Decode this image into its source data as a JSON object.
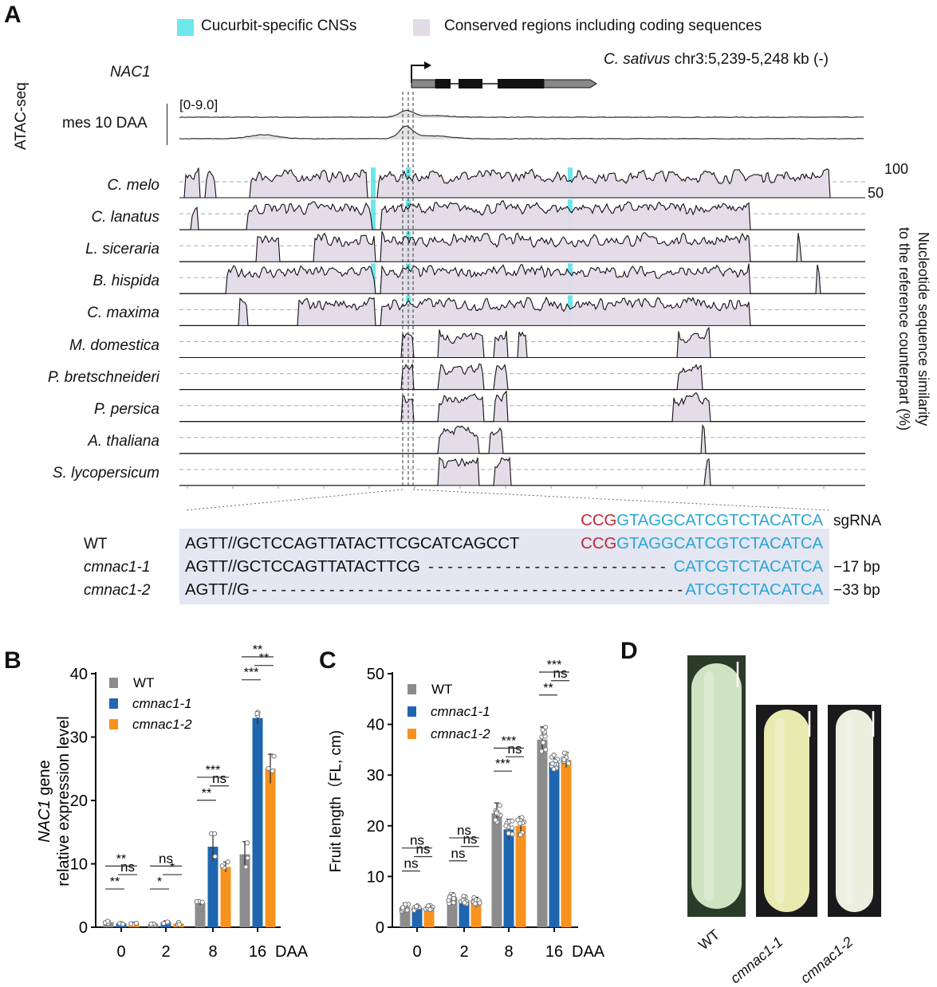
{
  "panelA": {
    "letter": "A",
    "legend": [
      {
        "label": "Cucurbit-specific CNSs",
        "color": "#6ee6ea"
      },
      {
        "label": "Conserved regions including coding sequences",
        "color": "#e3dbe8"
      }
    ],
    "gene_name": "NAC1",
    "coordinates_species": "C. sativus",
    "coordinates": "chr3:5,239-5,248 kb (-)",
    "atac_label": "ATAC-seq",
    "atac_sample": "mes 10 DAA",
    "atac_range": "[0-9.0]",
    "species": [
      "C. melo",
      "C. lanatus",
      "L. siceraria",
      "B. hispida",
      "C. maxima",
      "M. domestica",
      "P. bretschneideri",
      "P. persica",
      "A. thaliana",
      "S. lycopersicum"
    ],
    "similarity_ticks": [
      "100",
      "50"
    ],
    "similarity_axis_label_line1": "Nucleotide sequence similarity",
    "similarity_axis_label_line2": "to the reference counterpart (%)",
    "sequence": {
      "sgRNA": {
        "label": "sgRNA",
        "pam": "CCG",
        "target": "GTAGGCATCGTCTACATCA"
      },
      "rows": [
        {
          "label": "WT",
          "left": "AGTT//GCTCCAGTTATACTTCGCATCAGCCT",
          "gap": "",
          "pam": "CCG",
          "right": "GTAGGCATCGTCTACATCA",
          "deletion": ""
        },
        {
          "label": "cmnac1-1",
          "left": "AGTT//GCTCCAGTTATACTTCG",
          "gap": "- - - - - - - - - - - - - - - - - - - - - - - - -",
          "pam": "",
          "right": "CATCGTCTACATCA",
          "deletion": "−17 bp"
        },
        {
          "label": "cmnac1-2",
          "left": "AGTT//G",
          "gap": "- - - - - - - - - - - - - - - - - - - - - - - - - - - - - - - - - - - - - - - - - - - - -",
          "pam": "",
          "right": "ATCGTCTACATCA",
          "deletion": "−33 bp"
        }
      ]
    }
  },
  "chart_data": [
    {
      "panel": "B",
      "type": "bar",
      "categories": [
        "0",
        "2",
        "8",
        "16"
      ],
      "x_unit": "DAA",
      "ylabel_italic": "NAC1",
      "ylabel_rest": " gene",
      "ylabel_line2": "relative expression level",
      "ylim": [
        0,
        40
      ],
      "yticks": [
        "0",
        "10",
        "20",
        "30",
        "40"
      ],
      "legend_position": "top-left",
      "series": [
        {
          "name": "WT",
          "color": "#8c8c8c",
          "values": [
            0.8,
            0.5,
            3.8,
            11.5
          ],
          "errors": [
            0.2,
            0.2,
            0.3,
            2.0
          ]
        },
        {
          "name": "cmnac1-1",
          "color": "#1f66b0",
          "values": [
            0.6,
            0.8,
            12.7,
            33.0
          ],
          "errors": [
            0.2,
            0.2,
            2.3,
            1.0
          ]
        },
        {
          "name": "cmnac1-2",
          "color": "#f7921e",
          "values": [
            0.6,
            0.6,
            9.5,
            25.0
          ],
          "errors": [
            0.2,
            0.2,
            0.8,
            2.3
          ]
        }
      ],
      "significance": [
        {
          "wt_vs_1": "**",
          "one_vs_2": "ns",
          "wt_vs_2": "**"
        },
        {
          "wt_vs_1": "*",
          "one_vs_2": "*",
          "wt_vs_2": "ns"
        },
        {
          "wt_vs_1": "**",
          "one_vs_2": "ns",
          "wt_vs_2": "***"
        },
        {
          "wt_vs_1": "***",
          "one_vs_2": "**",
          "wt_vs_2": "**"
        }
      ]
    },
    {
      "panel": "C",
      "type": "bar",
      "categories": [
        "0",
        "2",
        "8",
        "16"
      ],
      "x_unit": "DAA",
      "ylabel": "Fruit length（FL, cm)",
      "ylim": [
        0,
        50
      ],
      "yticks": [
        "0",
        "10",
        "20",
        "30",
        "40",
        "50"
      ],
      "legend_position": "top-left",
      "series": [
        {
          "name": "WT",
          "color": "#8c8c8c",
          "values": [
            4.0,
            5.6,
            22.5,
            37.0
          ],
          "errors": [
            0.8,
            1.2,
            2.0,
            2.5
          ]
        },
        {
          "name": "cmnac1-1",
          "color": "#1f66b0",
          "values": [
            3.8,
            5.3,
            19.3,
            32.5
          ],
          "errors": [
            0.5,
            0.8,
            2.0,
            1.5
          ]
        },
        {
          "name": "cmnac1-2",
          "color": "#f7921e",
          "values": [
            3.8,
            4.9,
            20.0,
            33.0
          ],
          "errors": [
            0.5,
            1.0,
            1.8,
            1.5
          ]
        }
      ],
      "significance": [
        {
          "wt_vs_1": "ns",
          "one_vs_2": "ns",
          "wt_vs_2": "ns"
        },
        {
          "wt_vs_1": "ns",
          "one_vs_2": "ns",
          "wt_vs_2": "ns"
        },
        {
          "wt_vs_1": "***",
          "one_vs_2": "ns",
          "wt_vs_2": "***"
        },
        {
          "wt_vs_1": "**",
          "one_vs_2": "ns",
          "wt_vs_2": "***"
        }
      ]
    }
  ],
  "panelB": {
    "letter": "B"
  },
  "panelC": {
    "letter": "C"
  },
  "panelD": {
    "letter": "D",
    "photos": [
      {
        "label": "WT",
        "fruit_color": "#cfe3c2"
      },
      {
        "label": "cmnac1-1",
        "fruit_color": "#e8eab0"
      },
      {
        "label": "cmnac1-2",
        "fruit_color": "#eceee0"
      }
    ]
  }
}
